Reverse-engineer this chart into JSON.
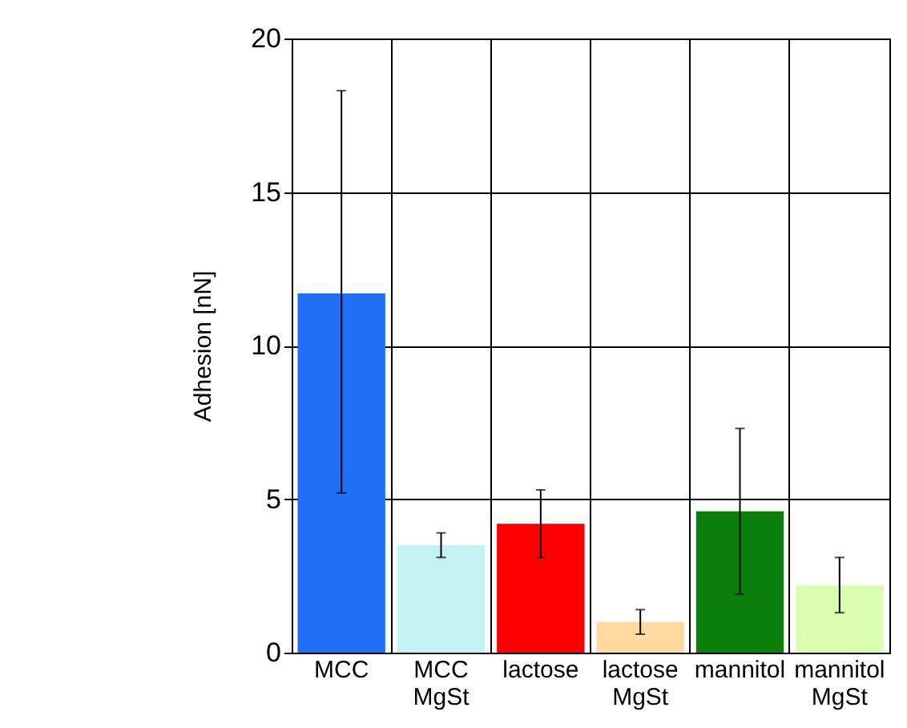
{
  "chart_data": {
    "type": "bar",
    "ylabel": "Adhesion [nN]",
    "categories": [
      "MCC",
      "MCC MgSt",
      "lactose",
      "lactose MgSt",
      "mannitol",
      "mannitol MgSt"
    ],
    "values": [
      11.7,
      3.5,
      4.2,
      1.0,
      4.6,
      2.2
    ],
    "colors": [
      "#1f6ff5",
      "#c2f2f2",
      "#ff0000",
      "#ffd9a0",
      "#0a800a",
      "#d9ffb0"
    ],
    "errors": [
      [
        5.2,
        18.3
      ],
      0.4,
      1.1,
      0.4,
      2.7,
      0.9
    ],
    "ylim": [
      0,
      20
    ],
    "yticks": [
      0,
      5,
      10,
      15,
      20
    ],
    "grid": true
  }
}
